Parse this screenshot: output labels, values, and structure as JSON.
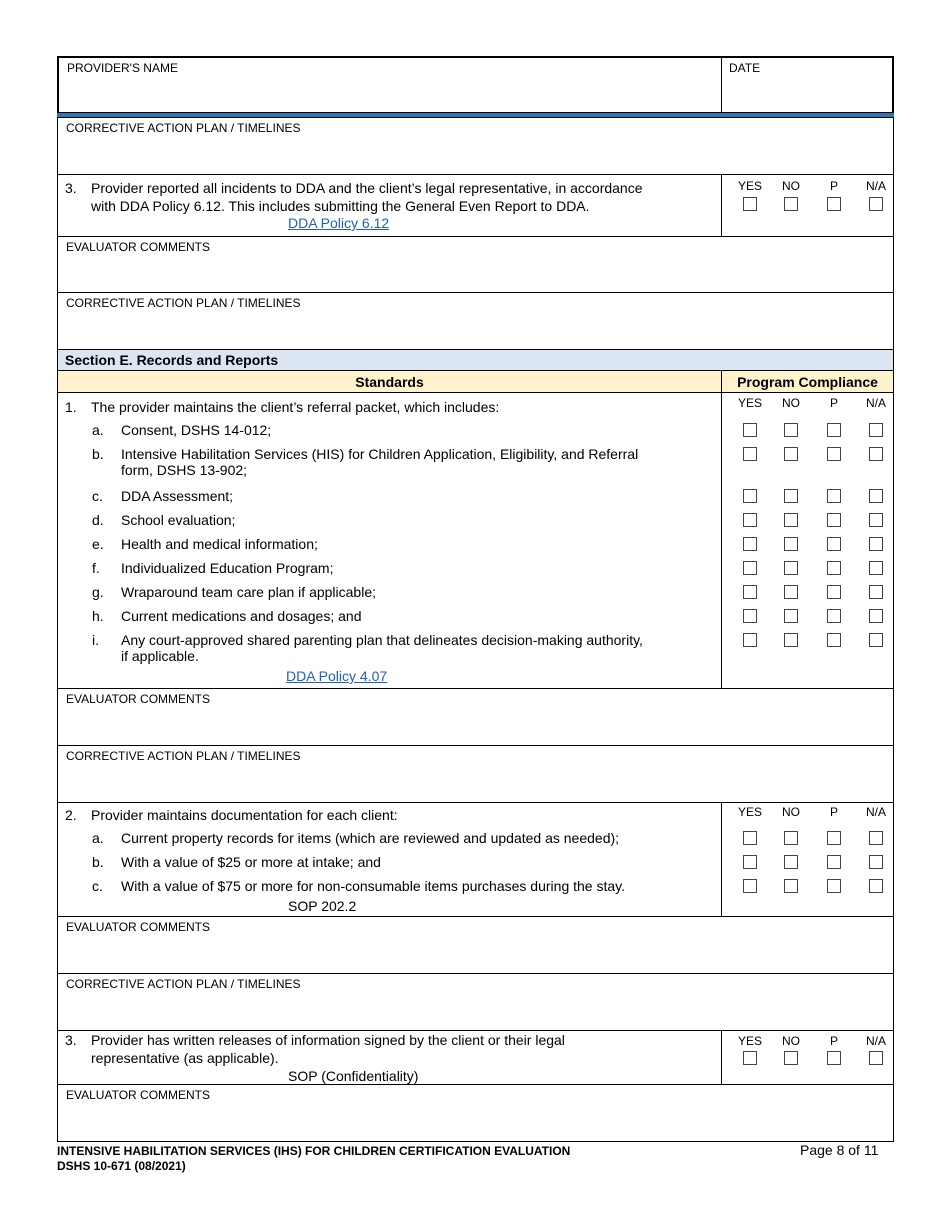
{
  "header": {
    "provider_label": "PROVIDER'S NAME",
    "date_label": "DATE"
  },
  "labels": {
    "cap": "CORRECTIVE ACTION PLAN / TIMELINES",
    "eval": "EVALUATOR COMMENTS"
  },
  "compliance_cols": [
    "YES",
    "NO",
    "P",
    "N/A"
  ],
  "q3_prev": {
    "num": "3.",
    "text_line1": "Provider reported all incidents to DDA and the client’s legal representative, in accordance",
    "text_line2": "with DDA Policy 6.12.  This includes submitting the General Even Report to DDA.",
    "link": "DDA Policy 6.12"
  },
  "section": {
    "title": "Section E.  Records and Reports",
    "standards": "Standards",
    "compliance": "Program Compliance"
  },
  "item1": {
    "num": "1.",
    "text": "The provider maintains the client’s referral packet, which includes:",
    "subitems": [
      {
        "letter": "a.",
        "text": "Consent, DSHS 14-012;"
      },
      {
        "letter": "b.",
        "text": "Intensive Habilitation Services (HIS) for Children Application, Eligibility, and Referral",
        "text2": "form, DSHS 13-902;"
      },
      {
        "letter": "c.",
        "text": "DDA Assessment;"
      },
      {
        "letter": "d.",
        "text": "School evaluation;"
      },
      {
        "letter": "e.",
        "text": "Health and medical information;"
      },
      {
        "letter": "f.",
        "text": "Individualized Education Program;"
      },
      {
        "letter": "g.",
        "text": "Wraparound team care plan if applicable;"
      },
      {
        "letter": "h.",
        "text": "Current medications and dosages; and"
      },
      {
        "letter": "i.",
        "text": "Any court-approved shared parenting plan that delineates decision-making authority,",
        "text2": "if applicable."
      }
    ],
    "link": "DDA Policy 4.07"
  },
  "item2": {
    "num": "2.",
    "text": "Provider maintains documentation for each client:",
    "subitems": [
      {
        "letter": "a.",
        "text": "Current property records for items (which are reviewed and updated as needed);"
      },
      {
        "letter": "b.",
        "text": "With a value of $25 or more at intake; and"
      },
      {
        "letter": "c.",
        "text": "With a value of $75 or more for non-consumable items purchases during the stay."
      }
    ],
    "ref": "SOP 202.2"
  },
  "item3": {
    "num": "3.",
    "text_line1": "Provider has written releases of information signed by the client or their legal",
    "text_line2": "representative (as applicable).",
    "ref": "SOP (Confidentiality)"
  },
  "footer": {
    "title": "INTENSIVE HABILITATION SERVICES (IHS) FOR CHILDREN CERTIFICATION EVALUATION",
    "form": "DSHS 10-671 (08/2021)",
    "page": "Page 8 of 11"
  },
  "colors": {
    "section_bg": "#dce6f2",
    "standards_bg": "#fff2cc",
    "link": "#1f5fbf",
    "rule": "#2e75b6"
  }
}
